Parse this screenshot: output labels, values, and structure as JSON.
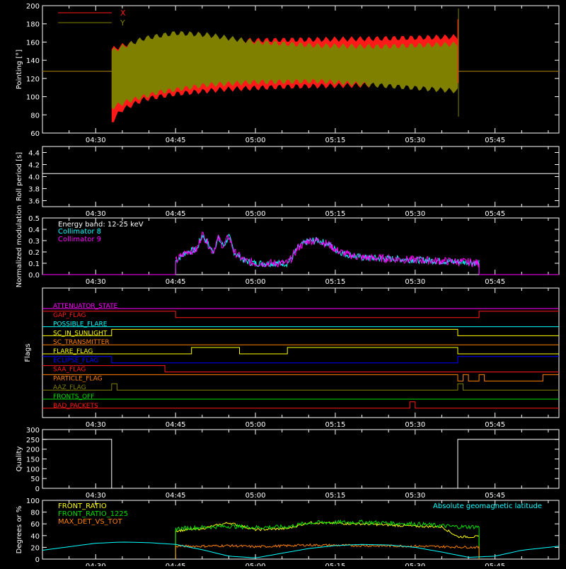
{
  "time_ticks": [
    "04:30",
    "04:45",
    "05:00",
    "05:15",
    "05:30",
    "05:45"
  ],
  "chart_data": [
    {
      "type": "line",
      "ylabel": "Pointing [°]",
      "ylim": [
        60,
        200
      ],
      "yticks": [
        60,
        80,
        100,
        120,
        140,
        160,
        180,
        200
      ],
      "legend": {
        "placement": "top-left"
      },
      "series": [
        {
          "name": "X",
          "color": "#ff1a1a",
          "baseline": 128,
          "start": "04:33",
          "end": "05:38",
          "envelope_top": [
            [
              4.55,
              152
            ],
            [
              4.6,
              158
            ],
            [
              4.7,
              160
            ],
            [
              4.8,
              161
            ],
            [
              5.0,
              162
            ],
            [
              5.2,
              163
            ],
            [
              5.4,
              164
            ],
            [
              5.64,
              166
            ]
          ],
          "envelope_bottom": [
            [
              4.55,
              72
            ],
            [
              4.58,
              85
            ],
            [
              4.65,
              97
            ],
            [
              4.75,
              103
            ],
            [
              4.9,
              108
            ],
            [
              5.1,
              111
            ],
            [
              5.4,
              113
            ],
            [
              5.64,
              113
            ]
          ]
        },
        {
          "name": "Y",
          "color": "#808000",
          "baseline": 128,
          "start": "04:33",
          "end": "05:38",
          "envelope_top": [
            [
              4.55,
              150
            ],
            [
              4.65,
              164
            ],
            [
              4.75,
              170
            ],
            [
              4.85,
              168
            ],
            [
              5.0,
              160
            ],
            [
              5.2,
              156
            ],
            [
              5.4,
              155
            ],
            [
              5.64,
              158
            ]
          ],
          "envelope_bottom": [
            [
              4.55,
              88
            ],
            [
              4.6,
              95
            ],
            [
              4.7,
              105
            ],
            [
              4.85,
              113
            ],
            [
              5.0,
              116
            ],
            [
              5.2,
              117
            ],
            [
              5.4,
              112
            ],
            [
              5.64,
              106
            ]
          ]
        }
      ]
    },
    {
      "type": "line",
      "ylabel": "Roll period [s]",
      "ylim": [
        3.5,
        4.5
      ],
      "yticks": [
        3.6,
        3.8,
        4.0,
        4.2,
        4.4
      ],
      "series": [
        {
          "color": "#ffffff",
          "x": [
            "04:20",
            "05:57"
          ],
          "y": [
            4.05,
            4.05
          ]
        }
      ]
    },
    {
      "type": "line",
      "ylabel": "Normalized modulation",
      "ylim": [
        0.0,
        0.5
      ],
      "yticks": [
        0.0,
        0.1,
        0.2,
        0.3,
        0.4,
        0.5
      ],
      "annotation": "Energy band: 12-25 keV",
      "series": [
        {
          "name": "Collimator 8",
          "color": "#00ffff"
        },
        {
          "name": "Collimator 9",
          "color": "#ff00ff"
        }
      ],
      "x": [
        "04:45",
        "04:47",
        "04:49",
        "04:50",
        "04:51",
        "04:52",
        "04:53",
        "04:54",
        "04:55",
        "04:56",
        "04:58",
        "05:00",
        "05:03",
        "05:06",
        "05:07",
        "05:08",
        "05:10",
        "05:12",
        "05:14",
        "05:15",
        "05:17",
        "05:20",
        "05:25",
        "05:30",
        "05:35",
        "05:40",
        "05:42"
      ],
      "y": [
        0.12,
        0.2,
        0.22,
        0.36,
        0.28,
        0.2,
        0.32,
        0.25,
        0.34,
        0.2,
        0.12,
        0.1,
        0.1,
        0.1,
        0.16,
        0.24,
        0.3,
        0.3,
        0.26,
        0.22,
        0.18,
        0.15,
        0.14,
        0.13,
        0.12,
        0.11,
        0.1
      ]
    },
    {
      "type": "line",
      "ylabel": "Flags",
      "flags": [
        {
          "name": "ATTENUATOR_STATE",
          "color": "#ff00ff",
          "steps": [
            [
              "04:20",
              0
            ]
          ]
        },
        {
          "name": "GAP_FLAG",
          "color": "#ff1a1a",
          "steps": [
            [
              "04:20",
              1
            ],
            [
              "04:45",
              0
            ],
            [
              "05:42",
              1
            ]
          ]
        },
        {
          "name": "POSSIBLE_FLARE",
          "color": "#00ffff",
          "steps": [
            [
              "04:20",
              0
            ]
          ]
        },
        {
          "name": "SC_IN_SUNLIGHT",
          "color": "#ffff00",
          "steps": [
            [
              "04:20",
              0
            ],
            [
              "04:33",
              1
            ],
            [
              "05:38",
              0
            ]
          ]
        },
        {
          "name": "SC_TRANSMITTER",
          "color": "#ff8000",
          "steps": [
            [
              "04:20",
              0
            ]
          ]
        },
        {
          "name": "FLARE_FLAG",
          "color": "#ffff00",
          "steps": [
            [
              "04:20",
              0
            ],
            [
              "04:48",
              1
            ],
            [
              "04:57",
              0
            ],
            [
              "05:06",
              1
            ],
            [
              "05:38",
              0
            ]
          ]
        },
        {
          "name": "ECLIPSE_FLAG",
          "color": "#0000ff",
          "steps": [
            [
              "04:20",
              1
            ],
            [
              "04:33",
              0
            ],
            [
              "05:38",
              1
            ]
          ]
        },
        {
          "name": "SAA_FLAG",
          "color": "#ff1a1a",
          "steps": [
            [
              "04:20",
              1
            ],
            [
              "04:43",
              0
            ]
          ]
        },
        {
          "name": "PARTICLE_FLAG",
          "color": "#ff8000",
          "steps": [
            [
              "04:20",
              1
            ],
            [
              "05:38",
              0
            ],
            [
              "05:39",
              1
            ],
            [
              "05:40",
              0
            ],
            [
              "05:42",
              1
            ],
            [
              "05:43",
              0
            ],
            [
              "05:54",
              1
            ]
          ]
        },
        {
          "name": "AAZ_FLAG",
          "color": "#808000",
          "steps": [
            [
              "04:20",
              0
            ],
            [
              "04:33",
              1
            ],
            [
              "04:34",
              0
            ],
            [
              "05:38",
              1
            ],
            [
              "05:39",
              0
            ]
          ]
        },
        {
          "name": "FRONTS_OFF",
          "color": "#00e000",
          "steps": [
            [
              "04:20",
              0
            ]
          ]
        },
        {
          "name": "BAD_PACKETS",
          "color": "#ff1a1a",
          "steps": [
            [
              "04:20",
              0
            ],
            [
              "05:29",
              1
            ],
            [
              "05:30",
              0
            ]
          ]
        }
      ]
    },
    {
      "type": "line",
      "ylabel": "Quality",
      "ylim": [
        0,
        300
      ],
      "yticks": [
        0,
        50,
        100,
        150,
        200,
        250,
        300
      ],
      "series": [
        {
          "color": "#ffffff",
          "steps": [
            [
              "04:20",
              250
            ],
            [
              "04:33",
              0
            ],
            [
              "05:38",
              250
            ]
          ]
        }
      ]
    },
    {
      "type": "line",
      "ylabel": "Degrees or %",
      "ylim": [
        0,
        100
      ],
      "yticks": [
        0,
        20,
        40,
        60,
        80,
        100
      ],
      "series": [
        {
          "name": "FRONT_RATIO",
          "color": "#ffff00",
          "x": [
            "04:45",
            "04:50",
            "04:55",
            "05:00",
            "05:06",
            "05:10",
            "05:20",
            "05:30",
            "05:35",
            "05:38",
            "05:42"
          ],
          "y": [
            48,
            52,
            62,
            50,
            52,
            62,
            60,
            56,
            55,
            38,
            38
          ]
        },
        {
          "name": "FRONT_RATIO_1225",
          "color": "#00e000",
          "x": [
            "04:45",
            "04:50",
            "04:55",
            "05:00",
            "05:06",
            "05:10",
            "05:20",
            "05:30",
            "05:38",
            "05:42"
          ],
          "y": [
            52,
            54,
            56,
            54,
            55,
            62,
            63,
            60,
            55,
            55
          ]
        },
        {
          "name": "MAX_DET_VS_TOT",
          "color": "#ff8000",
          "x": [
            "04:45",
            "04:50",
            "04:55",
            "05:00",
            "05:10",
            "05:20",
            "05:30",
            "05:42"
          ],
          "y": [
            22,
            22,
            23,
            21,
            24,
            23,
            22,
            20
          ]
        },
        {
          "name": "Absolute geomagnetic latitude",
          "color": "#00ffff",
          "x": [
            "04:20",
            "04:25",
            "04:30",
            "04:35",
            "04:40",
            "04:45",
            "04:50",
            "04:55",
            "05:00",
            "05:05",
            "05:10",
            "05:15",
            "05:20",
            "05:25",
            "05:30",
            "05:35",
            "05:40",
            "05:45",
            "05:50",
            "05:57"
          ],
          "y": [
            15,
            21,
            27,
            29,
            28,
            25,
            16,
            5,
            2,
            10,
            18,
            23,
            25,
            24,
            20,
            12,
            3,
            5,
            15,
            22
          ]
        }
      ]
    }
  ]
}
